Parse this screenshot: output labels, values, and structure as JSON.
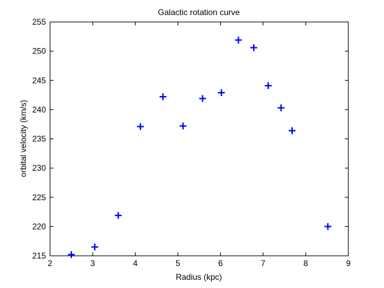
{
  "chart_data": {
    "type": "scatter",
    "title": "Galactic rotation curve",
    "xlabel": "Radius (kpc)",
    "ylabel": "orbital velocity (km/s)",
    "xlim": [
      2,
      9
    ],
    "ylim": [
      215,
      255
    ],
    "xticks": [
      2,
      3,
      4,
      5,
      6,
      7,
      8,
      9
    ],
    "yticks": [
      215,
      220,
      225,
      230,
      235,
      240,
      245,
      250,
      255
    ],
    "grid": false,
    "marker": "plus",
    "marker_color": "#0000ff",
    "series": [
      {
        "x": [
          2.5,
          3.05,
          3.6,
          4.12,
          4.65,
          5.12,
          5.58,
          6.02,
          6.42,
          6.78,
          7.12,
          7.42,
          7.68,
          8.52
        ],
        "y": [
          215.2,
          216.5,
          221.9,
          237.1,
          242.2,
          237.2,
          241.9,
          242.9,
          251.9,
          250.6,
          244.1,
          240.3,
          236.4,
          220.0
        ]
      }
    ]
  }
}
